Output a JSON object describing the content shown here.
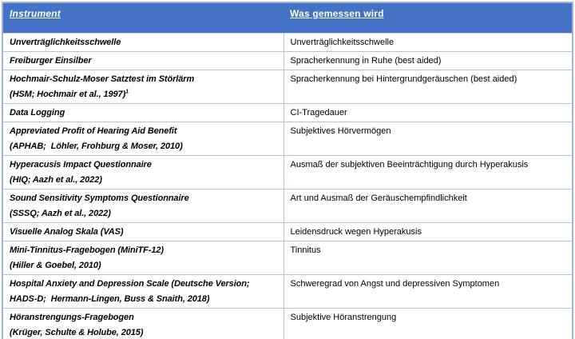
{
  "table": {
    "title_semantic": "Messinstrumente und gemessene Konstrukte",
    "colors": {
      "header_bg": "#4472C4",
      "header_text": "#FFFFFF",
      "border_outer": "#9FB5DA",
      "border_inner": "#AEC2E1",
      "body_text": "#000000",
      "page_bg": "#FFFFFF"
    },
    "header": {
      "col1": "Instrument",
      "col2": "Was gemessen wird"
    },
    "rows": [
      {
        "instrument_lines": [
          "Unverträglichkeitsschwelle"
        ],
        "superscript": "",
        "measure": "Unverträglichkeitsschwelle"
      },
      {
        "instrument_lines": [
          "Freiburger Einsilber"
        ],
        "superscript": "",
        "measure": "Spracherkennung in Ruhe (best aided)"
      },
      {
        "instrument_lines": [
          "Hochmair-Schulz-Moser Satztest im Störlärm",
          "(HSM; Hochmair et al., 1997)"
        ],
        "superscript": "1",
        "measure": "Spracherkennung bei Hintergrundgeräuschen (best aided)"
      },
      {
        "instrument_lines": [
          "Data Logging"
        ],
        "superscript": "",
        "measure": "CI-Tragedauer"
      },
      {
        "instrument_lines": [
          "Appreviated Profit of Hearing Aid Benefit",
          "(APHAB;  Löhler, Frohburg & Moser, 2010)"
        ],
        "superscript": "",
        "measure": "Subjektives Hörvermögen"
      },
      {
        "instrument_lines": [
          "Hyperacusis Impact Questionnaire",
          "(HIQ; Aazh et al., 2022)"
        ],
        "superscript": "",
        "measure": "Ausmaß der subjektiven Beeinträchtigung durch Hyperakusis"
      },
      {
        "instrument_lines": [
          "Sound Sensitivity Symptoms Questionnaire",
          "(SSSQ; Aazh et al., 2022)"
        ],
        "superscript": "",
        "measure": "Art und Ausmaß der Geräuschempfindlichkeit"
      },
      {
        "instrument_lines": [
          "Visuelle Analog Skala (VAS)"
        ],
        "superscript": "",
        "measure": "Leidensdruck wegen Hyperakusis"
      },
      {
        "instrument_lines": [
          "Mini-Tinnitus-Fragebogen (MiniTF-12)",
          "(Hiller & Goebel, 2010)"
        ],
        "superscript": "",
        "measure": "Tinnitus"
      },
      {
        "instrument_lines": [
          "Hospital Anxiety and Depression Scale (Deutsche Version;",
          "HADS-D;  Hermann-Lingen, Buss & Snaith, 2018)"
        ],
        "superscript": "",
        "measure": "Schweregrad von Angst und depressiven Symptomen"
      },
      {
        "instrument_lines": [
          "Höranstrengungs-Fragebogen",
          "(Krüger, Schulte & Holube, 2015)"
        ],
        "superscript": "",
        "measure": "Subjektive Höranstrengung"
      }
    ]
  }
}
